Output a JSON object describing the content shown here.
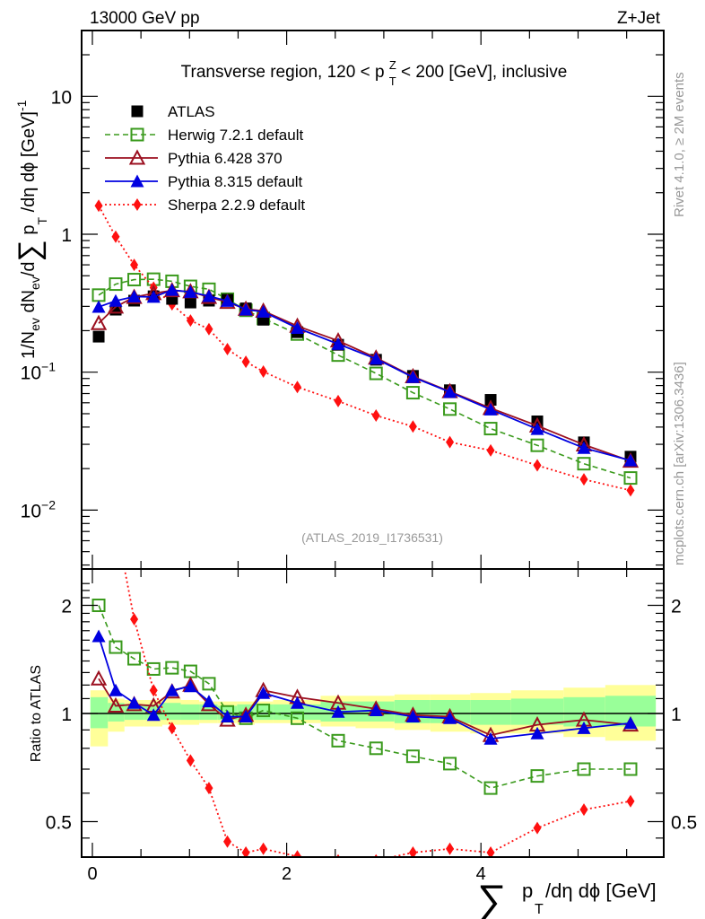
{
  "header": {
    "left_label": "13000 GeV pp",
    "right_label": "Z+Jet"
  },
  "side_labels": {
    "rivet": "Rivet 4.1.0, ≥ 2M events",
    "mcplots": "mcplots.cern.ch [arXiv:1306.3436]"
  },
  "analysis_id": "(ATLAS_2019_I1736531)",
  "colors": {
    "ATLAS": "#000000",
    "Herwig": "#3a9a1c",
    "Pythia6": "#9b1020",
    "Pythia8": "#0000e0",
    "Sherpa": "#ff1010",
    "stat_band": "#99ff99",
    "total_band": "#ffff99"
  },
  "chart_data": [
    {
      "type": "line",
      "panel": "main",
      "title": "Transverse region, 120 < p_T^Z < 200 [GeV], inclusive",
      "ylabel": "1/N_ev dN_ev/d∑ p_T /dη dφ  [GeV]^-1",
      "xlabel": "",
      "yscale": "log",
      "ylim": [
        0.004,
        30
      ],
      "xlim": [
        -0.11,
        5.88
      ],
      "ytick_labels": [
        "10^-2",
        "10^-1",
        "1",
        "10"
      ],
      "ytick_values": [
        0.01,
        0.1,
        1,
        10
      ],
      "legend_position": "top-left",
      "x": [
        0.065,
        0.24,
        0.43,
        0.63,
        0.82,
        1.01,
        1.2,
        1.39,
        1.58,
        1.76,
        2.11,
        2.53,
        2.92,
        3.3,
        3.68,
        4.1,
        4.58,
        5.06,
        5.54
      ],
      "series": [
        {
          "name": "ATLAS",
          "key": "ATLAS",
          "marker": "square-filled",
          "line": "none",
          "values": [
            0.181,
            0.284,
            0.33,
            0.355,
            0.34,
            0.32,
            0.33,
            0.335,
            0.29,
            0.24,
            0.195,
            0.158,
            0.123,
            0.094,
            0.074,
            0.063,
            0.044,
            0.031,
            0.0244
          ]
        },
        {
          "name": "Herwig 7.2.1 default",
          "key": "Herwig",
          "marker": "square-open",
          "line": "dashed",
          "values": [
            0.362,
            0.435,
            0.469,
            0.472,
            0.456,
            0.419,
            0.399,
            0.338,
            0.281,
            0.245,
            0.189,
            0.133,
            0.098,
            0.071,
            0.054,
            0.039,
            0.0295,
            0.0217,
            0.0171
          ]
        },
        {
          "name": "Pythia 6.428 370",
          "key": "Pythia6",
          "marker": "triangle-open",
          "line": "solid",
          "values": [
            0.226,
            0.298,
            0.35,
            0.373,
            0.391,
            0.384,
            0.35,
            0.322,
            0.287,
            0.278,
            0.216,
            0.169,
            0.127,
            0.093,
            0.0725,
            0.0548,
            0.0409,
            0.0298,
            0.0227
          ]
        },
        {
          "name": "Pythia 8.315 default",
          "key": "Pythia8",
          "marker": "triangle-filled",
          "line": "solid",
          "values": [
            0.297,
            0.329,
            0.353,
            0.351,
            0.394,
            0.381,
            0.356,
            0.328,
            0.284,
            0.274,
            0.209,
            0.16,
            0.125,
            0.092,
            0.0718,
            0.0536,
            0.0387,
            0.0282,
            0.0229
          ]
        },
        {
          "name": "Sherpa 2.2.9 default",
          "key": "Sherpa",
          "marker": "diamond-filled",
          "line": "dotted",
          "values": [
            1.61,
            0.96,
            0.6,
            0.41,
            0.31,
            0.237,
            0.205,
            0.147,
            0.119,
            0.101,
            0.078,
            0.0617,
            0.0485,
            0.0404,
            0.0311,
            0.0271,
            0.0211,
            0.0167,
            0.0139
          ]
        }
      ]
    },
    {
      "type": "line",
      "panel": "ratio",
      "ylabel": "Ratio to ATLAS",
      "xlabel": "∑ p_T /dη dφ [GeV]",
      "yscale": "log",
      "ylim": [
        0.41,
        2.35
      ],
      "xlim": [
        -0.11,
        5.88
      ],
      "ytick_labels": [
        "0.5",
        "1",
        "2"
      ],
      "ytick_values": [
        0.5,
        1,
        2
      ],
      "xtick_labels": [
        "0",
        "2",
        "4"
      ],
      "xtick_values": [
        0,
        2,
        4
      ],
      "reference_line": 1,
      "x": [
        0.065,
        0.24,
        0.43,
        0.63,
        0.82,
        1.01,
        1.2,
        1.39,
        1.58,
        1.76,
        2.11,
        2.53,
        2.92,
        3.3,
        3.68,
        4.1,
        4.58,
        5.06,
        5.54
      ],
      "bin_edges": [
        -0.02,
        0.16,
        0.33,
        0.53,
        0.72,
        0.91,
        1.1,
        1.29,
        1.49,
        1.67,
        1.86,
        2.35,
        2.71,
        3.11,
        3.48,
        3.89,
        4.31,
        4.85,
        5.28,
        5.8
      ],
      "stat_band": {
        "upper": [
          1.11,
          1.07,
          1.06,
          1.06,
          1.07,
          1.06,
          1.06,
          1.05,
          1.06,
          1.06,
          1.06,
          1.08,
          1.08,
          1.09,
          1.09,
          1.09,
          1.1,
          1.11,
          1.12
        ],
        "lower": [
          0.91,
          0.95,
          0.96,
          0.96,
          0.96,
          0.96,
          0.96,
          0.96,
          0.96,
          0.96,
          0.96,
          0.95,
          0.95,
          0.94,
          0.94,
          0.93,
          0.93,
          0.92,
          0.92
        ]
      },
      "total_band": {
        "upper": [
          1.16,
          1.1,
          1.09,
          1.09,
          1.1,
          1.09,
          1.08,
          1.08,
          1.08,
          1.08,
          1.09,
          1.12,
          1.12,
          1.13,
          1.13,
          1.14,
          1.16,
          1.18,
          1.2
        ],
        "lower": [
          0.81,
          0.89,
          0.92,
          0.92,
          0.93,
          0.93,
          0.94,
          0.94,
          0.93,
          0.94,
          0.94,
          0.92,
          0.91,
          0.9,
          0.89,
          0.88,
          0.88,
          0.86,
          0.84
        ]
      },
      "series": [
        {
          "name": "Herwig 7.2.1 default",
          "key": "Herwig",
          "marker": "square-open",
          "line": "dashed",
          "values": [
            2.0,
            1.53,
            1.42,
            1.33,
            1.34,
            1.31,
            1.21,
            1.01,
            0.97,
            1.02,
            0.97,
            0.84,
            0.8,
            0.76,
            0.725,
            0.62,
            0.67,
            0.7,
            0.7
          ]
        },
        {
          "name": "Pythia 6.428 370",
          "key": "Pythia6",
          "marker": "triangle-open",
          "line": "solid",
          "values": [
            1.25,
            1.05,
            1.06,
            1.05,
            1.15,
            1.2,
            1.06,
            0.96,
            0.99,
            1.16,
            1.11,
            1.07,
            1.03,
            0.99,
            0.98,
            0.87,
            0.93,
            0.96,
            0.93
          ]
        },
        {
          "name": "Pythia 8.315 default",
          "key": "Pythia8",
          "marker": "triangle-filled",
          "line": "solid",
          "values": [
            1.64,
            1.16,
            1.07,
            0.99,
            1.16,
            1.19,
            1.08,
            0.98,
            0.98,
            1.14,
            1.07,
            1.01,
            1.02,
            0.98,
            0.97,
            0.85,
            0.88,
            0.91,
            0.94
          ]
        },
        {
          "name": "Sherpa 2.2.9 default",
          "key": "Sherpa",
          "marker": "diamond-filled",
          "line": "dotted",
          "values": [
            8.9,
            3.4,
            1.83,
            1.16,
            0.91,
            0.74,
            0.62,
            0.44,
            0.41,
            0.42,
            0.4,
            0.39,
            0.39,
            0.41,
            0.42,
            0.41,
            0.48,
            0.54,
            0.57
          ]
        }
      ]
    }
  ]
}
